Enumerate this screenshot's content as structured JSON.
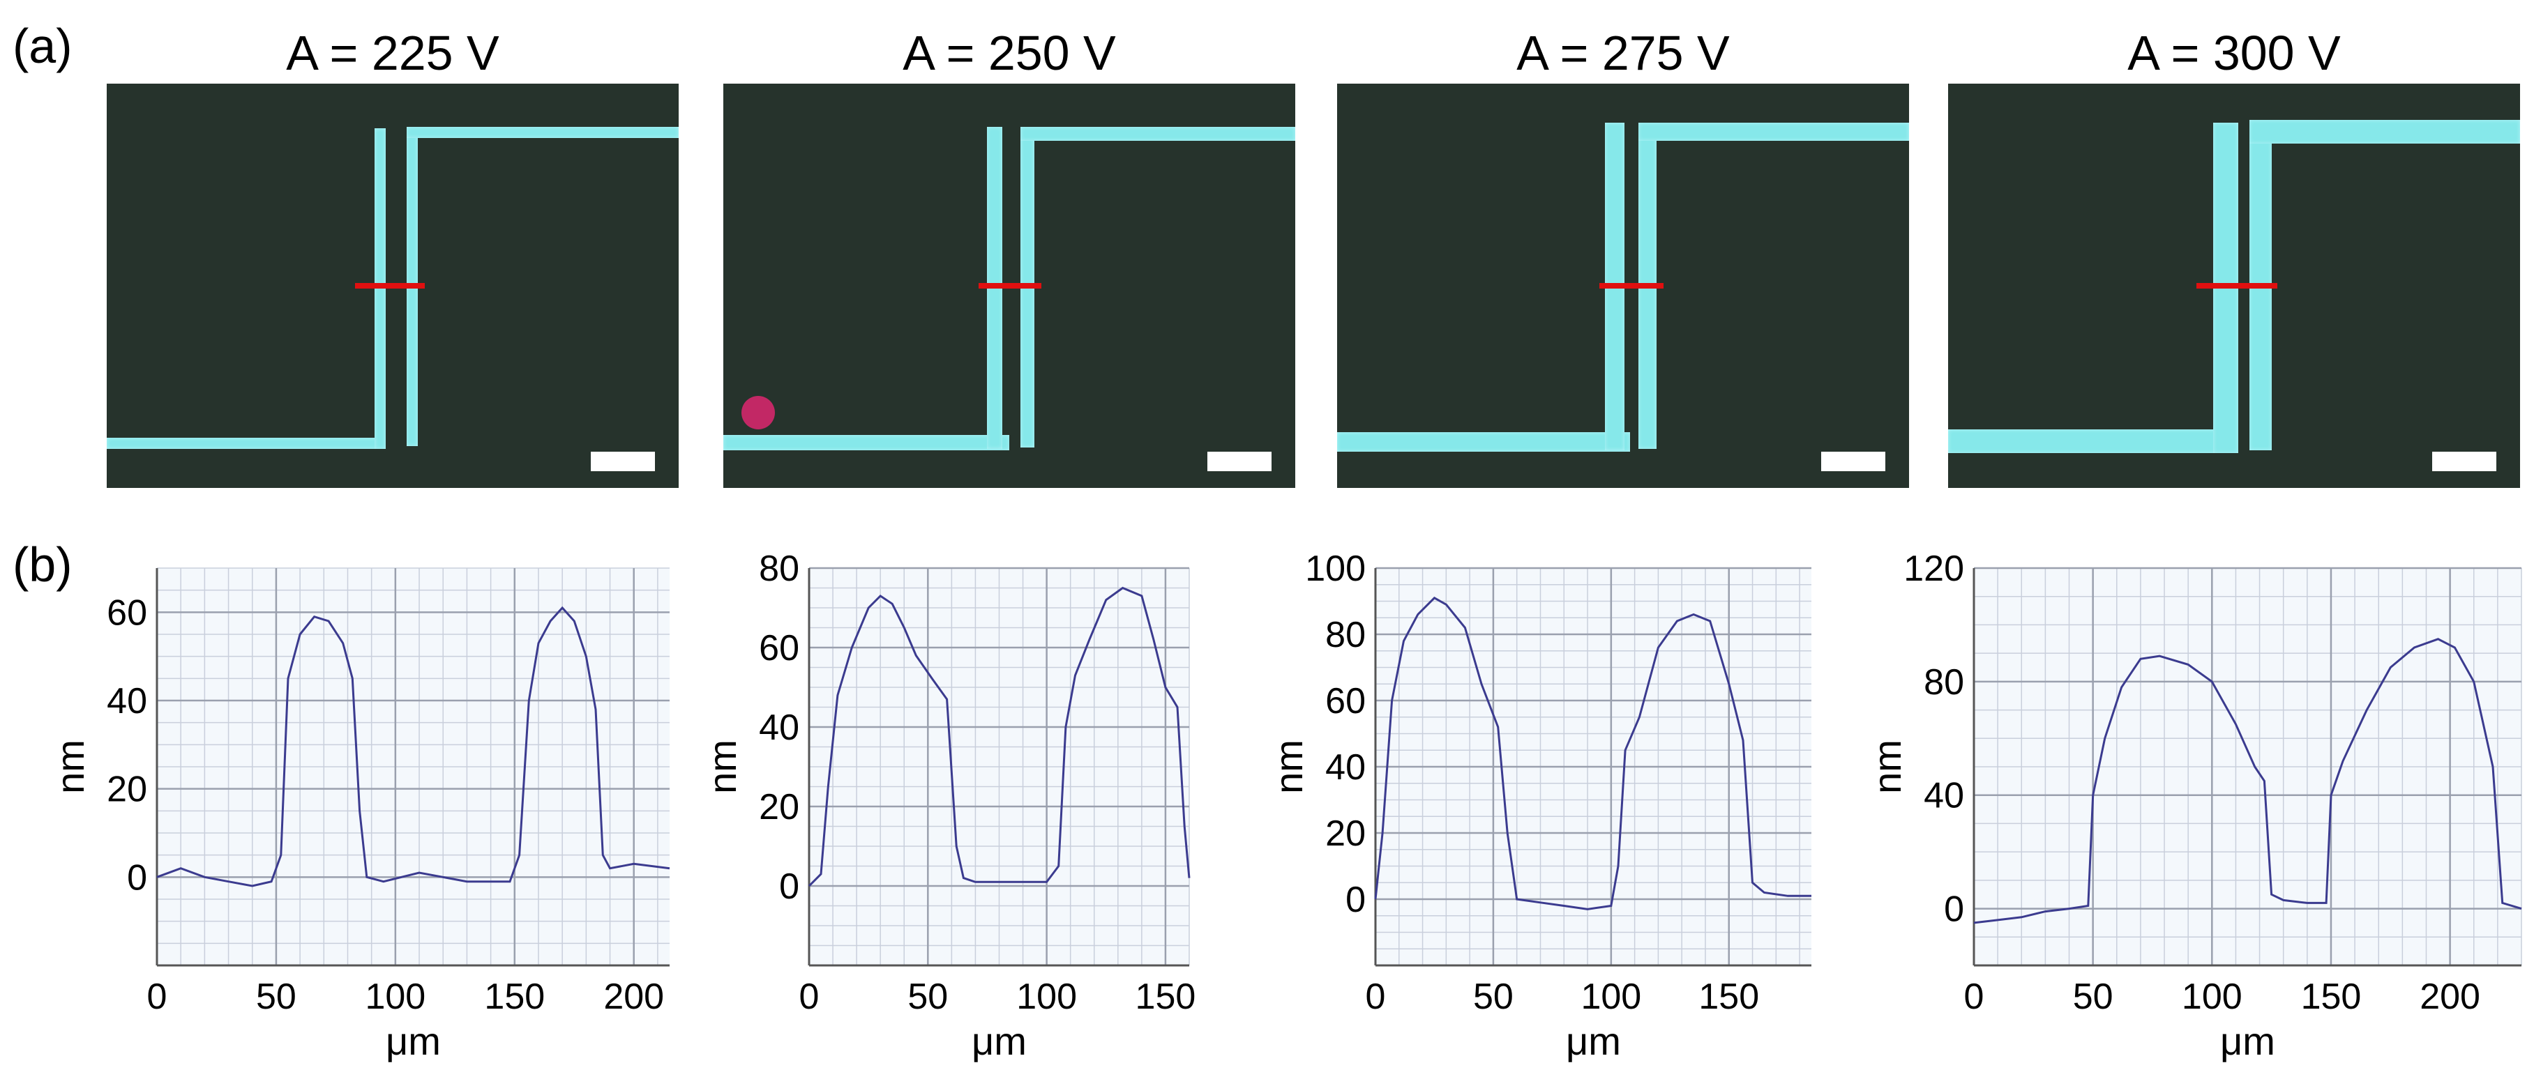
{
  "labels": {
    "panel_a": "(a)",
    "panel_b": "(b)"
  },
  "micrographs": [
    {
      "title": "A = 225 V"
    },
    {
      "title": "A = 250 V"
    },
    {
      "title": "A = 275 V"
    },
    {
      "title": "A = 300 V"
    }
  ],
  "colors": {
    "line": "#3b3b8f",
    "grid_major": "#9aa0ae",
    "grid_minor": "#c9cfdc",
    "plot_bg": "#f4f8fc",
    "trace": "#86e8ea",
    "cut": "#e01010"
  },
  "chart_data": [
    {
      "type": "line",
      "xlabel": "μm",
      "ylabel": "nm",
      "xlim": [
        0,
        215
      ],
      "ylim": [
        -20,
        70
      ],
      "xticks": [
        0,
        50,
        100,
        150,
        200
      ],
      "yticks": [
        0,
        20,
        40,
        60
      ],
      "x": [
        0,
        10,
        20,
        30,
        40,
        48,
        52,
        55,
        60,
        66,
        72,
        78,
        82,
        85,
        88,
        95,
        110,
        130,
        148,
        152,
        156,
        160,
        165,
        170,
        175,
        180,
        184,
        187,
        190,
        200,
        215
      ],
      "y": [
        0,
        2,
        0,
        -1,
        -2,
        -1,
        5,
        45,
        55,
        59,
        58,
        53,
        45,
        15,
        0,
        -1,
        1,
        -1,
        -1,
        5,
        40,
        53,
        58,
        61,
        58,
        50,
        38,
        5,
        2,
        3,
        2
      ]
    },
    {
      "type": "line",
      "xlabel": "μm",
      "ylabel": "nm",
      "xlim": [
        0,
        160
      ],
      "ylim": [
        -20,
        80
      ],
      "xticks": [
        0,
        50,
        100,
        150
      ],
      "yticks": [
        0,
        20,
        40,
        60,
        80
      ],
      "x": [
        0,
        5,
        8,
        12,
        18,
        25,
        30,
        35,
        40,
        45,
        52,
        58,
        62,
        65,
        70,
        80,
        90,
        100,
        105,
        108,
        112,
        118,
        125,
        132,
        140,
        145,
        150,
        155,
        158,
        160
      ],
      "y": [
        0,
        3,
        25,
        48,
        60,
        70,
        73,
        71,
        65,
        58,
        52,
        47,
        10,
        2,
        1,
        1,
        1,
        1,
        5,
        40,
        53,
        62,
        72,
        75,
        73,
        62,
        50,
        45,
        15,
        2
      ]
    },
    {
      "type": "line",
      "xlabel": "μm",
      "ylabel": "nm",
      "xlim": [
        0,
        185
      ],
      "ylim": [
        -20,
        100
      ],
      "xticks": [
        0,
        50,
        100,
        150
      ],
      "yticks": [
        0,
        20,
        40,
        60,
        80,
        100
      ],
      "x": [
        0,
        3,
        7,
        12,
        18,
        25,
        30,
        38,
        45,
        52,
        56,
        60,
        70,
        80,
        90,
        100,
        103,
        106,
        112,
        120,
        128,
        135,
        142,
        150,
        156,
        160,
        165,
        175,
        185
      ],
      "y": [
        0,
        20,
        60,
        78,
        86,
        91,
        89,
        82,
        65,
        52,
        20,
        0,
        -1,
        -2,
        -3,
        -2,
        10,
        45,
        55,
        76,
        84,
        86,
        84,
        65,
        48,
        5,
        2,
        1,
        1
      ],
      "_": ""
    },
    {
      "type": "line",
      "xlabel": "μm",
      "ylabel": "nm",
      "xlim": [
        0,
        230
      ],
      "ylim": [
        -20,
        120
      ],
      "xticks": [
        0,
        50,
        100,
        150,
        200
      ],
      "yticks": [
        0,
        40,
        80,
        120
      ],
      "x": [
        0,
        10,
        20,
        30,
        40,
        48,
        50,
        55,
        62,
        70,
        78,
        90,
        100,
        110,
        118,
        122,
        125,
        130,
        140,
        148,
        150,
        155,
        165,
        175,
        185,
        195,
        202,
        210,
        218,
        222,
        230
      ],
      "y": [
        -5,
        -4,
        -3,
        -1,
        0,
        1,
        40,
        60,
        78,
        88,
        89,
        86,
        80,
        65,
        50,
        45,
        5,
        3,
        2,
        2,
        40,
        52,
        70,
        85,
        92,
        95,
        92,
        80,
        50,
        2,
        0
      ]
    }
  ]
}
